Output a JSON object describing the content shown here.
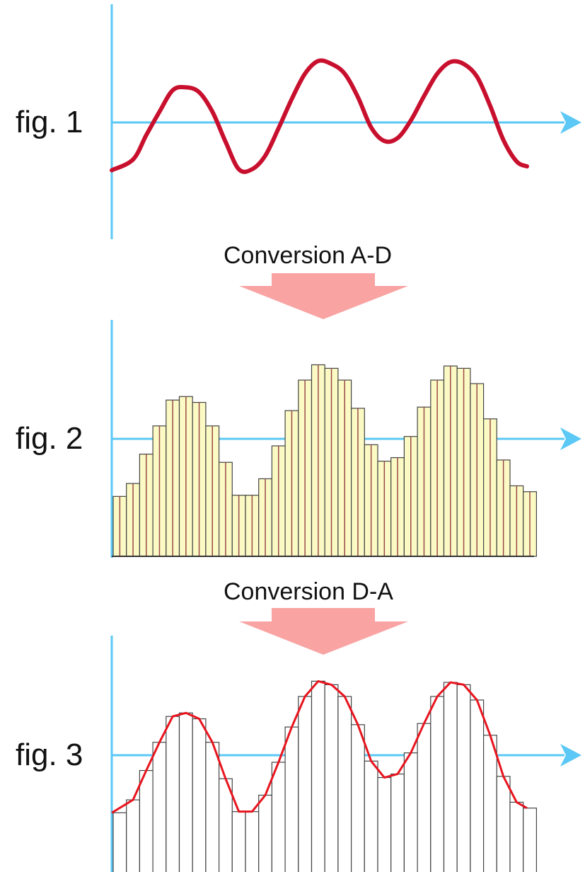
{
  "figures": [
    {
      "label": "fig. 1"
    },
    {
      "label": "fig. 2"
    },
    {
      "label": "fig. 3"
    }
  ],
  "conversions": [
    {
      "label": "Conversion A-D"
    },
    {
      "label": "Conversion D-A"
    }
  ],
  "colors": {
    "axis": "#5bc8f5",
    "signal": "#c8102e",
    "reconstructed": "#e8141e",
    "sample_fill": "#fbfac4",
    "sample_stroke": "#444444",
    "sample_center": "#9a4a4a",
    "arrow": "#f9a3a3"
  },
  "chart_data": {
    "type": "bar",
    "samples": [
      0.51,
      0.62,
      0.87,
      1.11,
      1.33,
      1.36,
      1.31,
      1.11,
      0.8,
      0.52,
      0.52,
      0.66,
      0.94,
      1.24,
      1.5,
      1.63,
      1.6,
      1.5,
      1.26,
      0.95,
      0.81,
      0.84,
      1.02,
      1.27,
      1.5,
      1.62,
      1.6,
      1.47,
      1.17,
      0.82,
      0.6,
      0.55
    ]
  }
}
